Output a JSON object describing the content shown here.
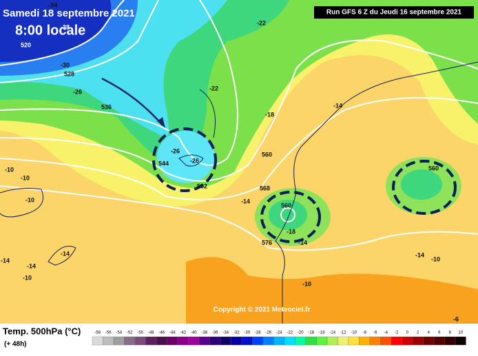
{
  "header": {
    "date": "Samedi 18 septembre 2021",
    "time": "8:00 locale",
    "run": "Run GFS 6 Z du Jeudi 16 septembre 2021"
  },
  "copyright": "Copyright © 2021 Meteociel.fr",
  "legend": {
    "title": "Temp. 500hPa (°C)",
    "subtitle": "(+ 48h)",
    "items": [
      {
        "label": "-58",
        "color": "#d9d9d9"
      },
      {
        "label": "-56",
        "color": "#bdbdbd"
      },
      {
        "label": "-54",
        "color": "#9e9e9e"
      },
      {
        "label": "-52",
        "color": "#8a6a8a"
      },
      {
        "label": "-50",
        "color": "#7a4a7a"
      },
      {
        "label": "-48",
        "color": "#5e1f5e"
      },
      {
        "label": "-46",
        "color": "#4b0f4b"
      },
      {
        "label": "-44",
        "color": "#6a006a"
      },
      {
        "label": "-42",
        "color": "#8b008b"
      },
      {
        "label": "-40",
        "color": "#a000a0"
      },
      {
        "label": "-38",
        "color": "#5a0090"
      },
      {
        "label": "-36",
        "color": "#30007a"
      },
      {
        "label": "-34",
        "color": "#10006a"
      },
      {
        "label": "-32",
        "color": "#0000a0"
      },
      {
        "label": "-30",
        "color": "#0010d0"
      },
      {
        "label": "-28",
        "color": "#0040ff"
      },
      {
        "label": "-26",
        "color": "#0080ff"
      },
      {
        "label": "-24",
        "color": "#00b4ff"
      },
      {
        "label": "-22",
        "color": "#00e0ff"
      },
      {
        "label": "-20",
        "color": "#00ffa0"
      },
      {
        "label": "-18",
        "color": "#30e040"
      },
      {
        "label": "-16",
        "color": "#60f040"
      },
      {
        "label": "-14",
        "color": "#b0f050"
      },
      {
        "label": "-12",
        "color": "#f0f070"
      },
      {
        "label": "-10",
        "color": "#ffe040"
      },
      {
        "label": "-8",
        "color": "#ffb000"
      },
      {
        "label": "-6",
        "color": "#ff8000"
      },
      {
        "label": "-4",
        "color": "#ff5000"
      },
      {
        "label": "-2",
        "color": "#ff0000"
      },
      {
        "label": "0",
        "color": "#d00000"
      },
      {
        "label": "2",
        "color": "#a00000"
      },
      {
        "label": "4",
        "color": "#700000"
      },
      {
        "label": "6",
        "color": "#500000"
      },
      {
        "label": "8",
        "color": "#300000"
      },
      {
        "label": "10",
        "color": "#100000"
      }
    ]
  },
  "map_labels": [
    "-34",
    "520",
    "-38",
    "-30",
    "528",
    "-26",
    "536",
    "-22",
    "-22",
    "-18",
    "-14",
    "-26",
    "-26",
    "544",
    "552",
    "560",
    "568",
    "-14",
    "560",
    "-18",
    "576",
    "-14",
    "560",
    "-10",
    "-10",
    "-10",
    "-14",
    "-14",
    "-14",
    "-10",
    "-14",
    "-10",
    "-10",
    "-6"
  ]
}
